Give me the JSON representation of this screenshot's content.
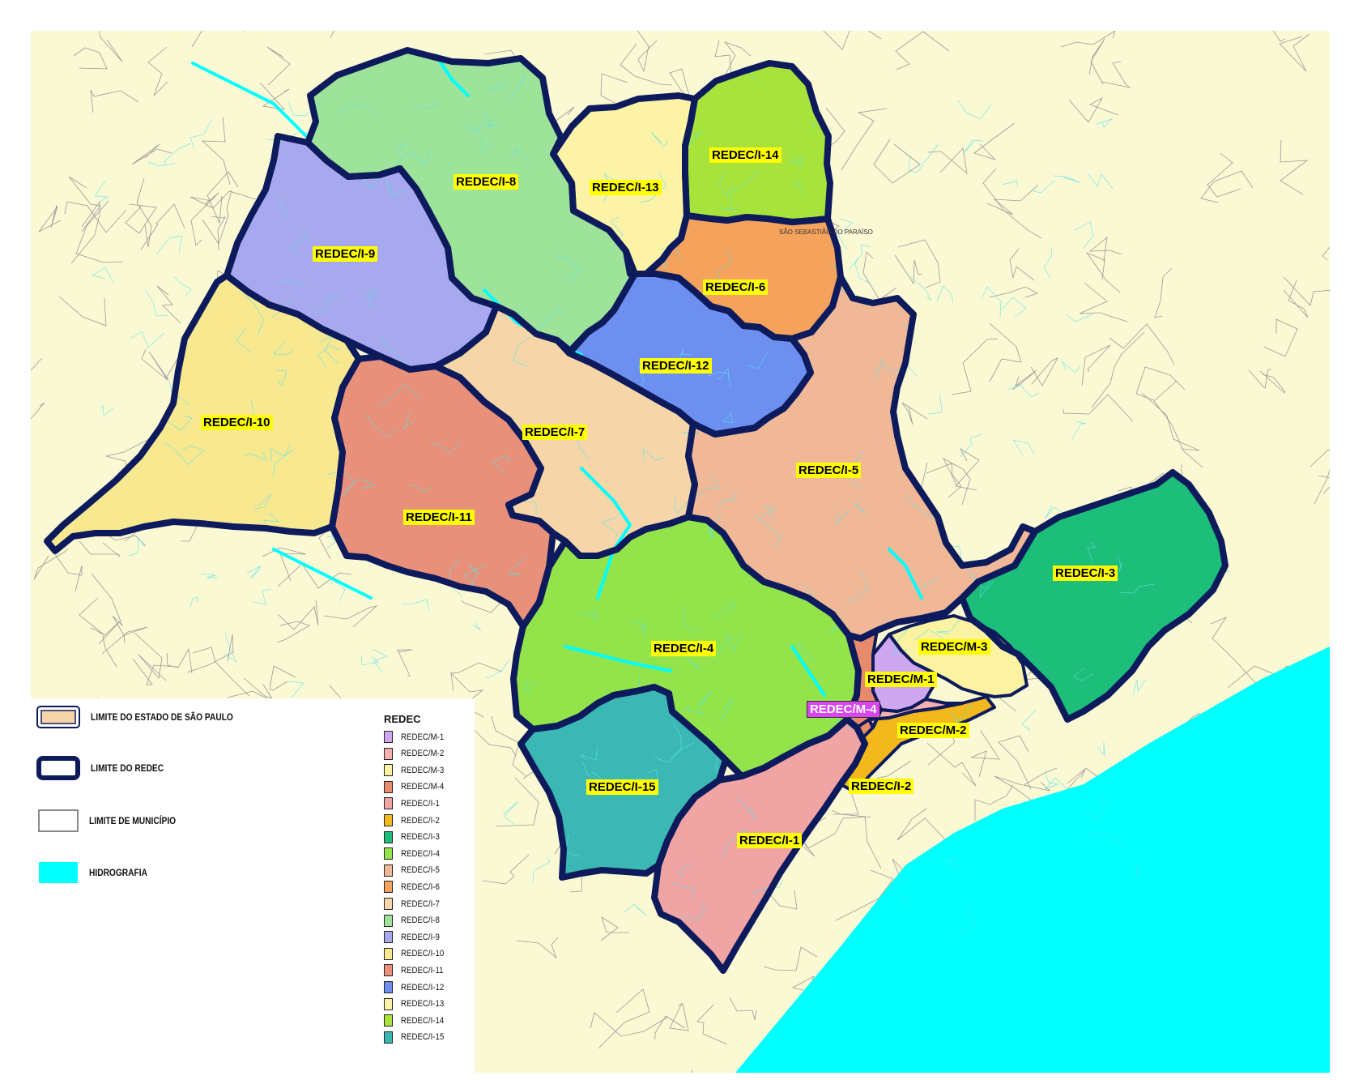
{
  "map": {
    "regions": [
      {
        "id": "i8",
        "label": "REDEC/I-8",
        "color": "#9ee39a"
      },
      {
        "id": "i9",
        "label": "REDEC/I-9",
        "color": "#a8a8ee"
      },
      {
        "id": "i13",
        "label": "REDEC/I-13",
        "color": "#fcf3a6"
      },
      {
        "id": "i14",
        "label": "REDEC/I-14",
        "color": "#a7e33a"
      },
      {
        "id": "i6",
        "label": "REDEC/I-6",
        "color": "#f5a35c"
      },
      {
        "id": "i12",
        "label": "REDEC/I-12",
        "color": "#6d8ff0"
      },
      {
        "id": "i10",
        "label": "REDEC/I-10",
        "color": "#f8e890"
      },
      {
        "id": "i11",
        "label": "REDEC/I-11",
        "color": "#e9907a"
      },
      {
        "id": "i7",
        "label": "REDEC/I-7",
        "color": "#f6d6a8"
      },
      {
        "id": "i5",
        "label": "REDEC/I-5",
        "color": "#f1b898"
      },
      {
        "id": "i4",
        "label": "REDEC/I-4",
        "color": "#93e44a"
      },
      {
        "id": "i3",
        "label": "REDEC/I-3",
        "color": "#1dbd7a"
      },
      {
        "id": "i15",
        "label": "REDEC/I-15",
        "color": "#3cb8b4"
      },
      {
        "id": "i1",
        "label": "REDEC/I-1",
        "color": "#f1a4a4"
      },
      {
        "id": "i2",
        "label": "REDEC/I-2",
        "color": "#f2b81c"
      },
      {
        "id": "m3",
        "label": "REDEC/M-3",
        "color": "#fbf3a2"
      },
      {
        "id": "m1",
        "label": "REDEC/M-1",
        "color": "#cfa7f0"
      },
      {
        "id": "m4",
        "label": "REDEC/M-4",
        "color": "#e88a6c"
      },
      {
        "id": "m2",
        "label": "REDEC/M-2",
        "color": "#f7b0b0"
      }
    ],
    "city_label": "SÃO SEBASTIÃO DO PARAÍSO",
    "colors": {
      "background": "#fbf9d4",
      "ocean": "#00ffff",
      "hydrography": "#00ffff",
      "redec_border": "#0d1b5c",
      "municipal_border": "#999999",
      "label_bg": "#ffff00"
    }
  },
  "legend": {
    "items": [
      {
        "label": "LIMITE DO ESTADO DE SÃO PAULO",
        "icon": "state-limit-icon"
      },
      {
        "label": "LIMITE DO REDEC",
        "icon": "redec-limit-icon"
      },
      {
        "label": "LIMITE DE MUNICÍPIO",
        "icon": "municipality-limit-icon"
      },
      {
        "label": "HIDROGRAFIA",
        "icon": "hydrography-icon"
      }
    ],
    "redec_title": "REDEC",
    "redec_entries": [
      {
        "label": "REDEC/M-1",
        "color": "#cfa7f0"
      },
      {
        "label": "REDEC/M-2",
        "color": "#f7b0b0"
      },
      {
        "label": "REDEC/M-3",
        "color": "#fbf3a2"
      },
      {
        "label": "REDEC/M-4",
        "color": "#e88a6c"
      },
      {
        "label": "REDEC/I-1",
        "color": "#f1a4a4"
      },
      {
        "label": "REDEC/I-2",
        "color": "#f2b81c"
      },
      {
        "label": "REDEC/I-3",
        "color": "#1dbd7a"
      },
      {
        "label": "REDEC/I-4",
        "color": "#93e44a"
      },
      {
        "label": "REDEC/I-5",
        "color": "#f1b898"
      },
      {
        "label": "REDEC/I-6",
        "color": "#f5a35c"
      },
      {
        "label": "REDEC/I-7",
        "color": "#f6d6a8"
      },
      {
        "label": "REDEC/I-8",
        "color": "#9ee39a"
      },
      {
        "label": "REDEC/I-9",
        "color": "#a8a8ee"
      },
      {
        "label": "REDEC/I-10",
        "color": "#f8e890"
      },
      {
        "label": "REDEC/I-11",
        "color": "#e9907a"
      },
      {
        "label": "REDEC/I-12",
        "color": "#6d8ff0"
      },
      {
        "label": "REDEC/I-13",
        "color": "#fcf3a6"
      },
      {
        "label": "REDEC/I-14",
        "color": "#a7e33a"
      },
      {
        "label": "REDEC/I-15",
        "color": "#3cb8b4"
      }
    ]
  }
}
